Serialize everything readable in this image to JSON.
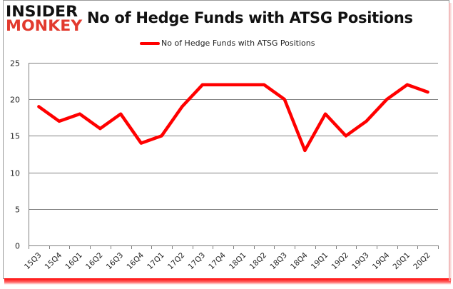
{
  "logo": {
    "line1": "INSIDER",
    "line2": "MONKEY"
  },
  "title": "No of Hedge Funds with ATSG Positions",
  "legend": {
    "label": "No of Hedge Funds with ATSG Positions",
    "color": "#ff0000"
  },
  "colors": {
    "line": "#ff0000",
    "grid": "#808080",
    "axis": "#808080",
    "logo_red": "#e23a2e",
    "frame_shadow": "#ff0000"
  },
  "chart_data": {
    "type": "line",
    "title": "No of Hedge Funds with ATSG Positions",
    "xlabel": "",
    "ylabel": "",
    "ylim": [
      0,
      25
    ],
    "yticks": [
      0,
      5,
      10,
      15,
      20,
      25
    ],
    "grid": true,
    "legend_position": "top",
    "categories": [
      "15Q3",
      "15Q4",
      "16Q1",
      "16Q2",
      "16Q3",
      "16Q4",
      "17Q1",
      "17Q2",
      "17Q3",
      "17Q4",
      "18Q1",
      "18Q2",
      "18Q3",
      "18Q4",
      "19Q1",
      "19Q2",
      "19Q3",
      "19Q4",
      "20Q1",
      "20Q2"
    ],
    "series": [
      {
        "name": "No of Hedge Funds with ATSG Positions",
        "values": [
          19,
          17,
          18,
          16,
          18,
          14,
          15,
          19,
          22,
          22,
          22,
          22,
          20,
          13,
          18,
          15,
          17,
          20,
          22,
          21
        ]
      }
    ]
  }
}
